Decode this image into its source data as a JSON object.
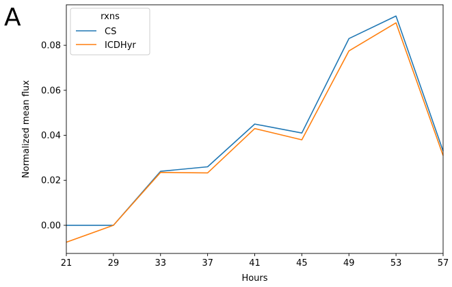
{
  "panel_letter": "A",
  "chart_data": {
    "type": "line",
    "title": "",
    "xlabel": "Hours",
    "ylabel": "Normalized mean flux",
    "x": [
      21,
      29,
      33,
      37,
      41,
      45,
      49,
      53,
      57
    ],
    "x_tick_labels": [
      "21",
      "29",
      "33",
      "37",
      "41",
      "45",
      "49",
      "53",
      "57"
    ],
    "categorical_x": true,
    "y_ticks": [
      0.0,
      0.02,
      0.04,
      0.06,
      0.08
    ],
    "y_tick_labels": [
      "0.00",
      "0.02",
      "0.04",
      "0.06",
      "0.08"
    ],
    "ylim": [
      -0.0125,
      0.098
    ],
    "grid": false,
    "legend": {
      "title": "rxns",
      "placement": "top-left"
    },
    "series": [
      {
        "name": "CS",
        "color": "#1f77b4",
        "values": [
          0.0,
          0.0,
          0.024,
          0.026,
          0.045,
          0.041,
          0.083,
          0.093,
          0.033
        ]
      },
      {
        "name": "ICDHyr",
        "color": "#ff7f0e",
        "values": [
          -0.0075,
          0.0,
          0.0235,
          0.0233,
          0.043,
          0.038,
          0.0775,
          0.09,
          0.031
        ]
      }
    ]
  }
}
